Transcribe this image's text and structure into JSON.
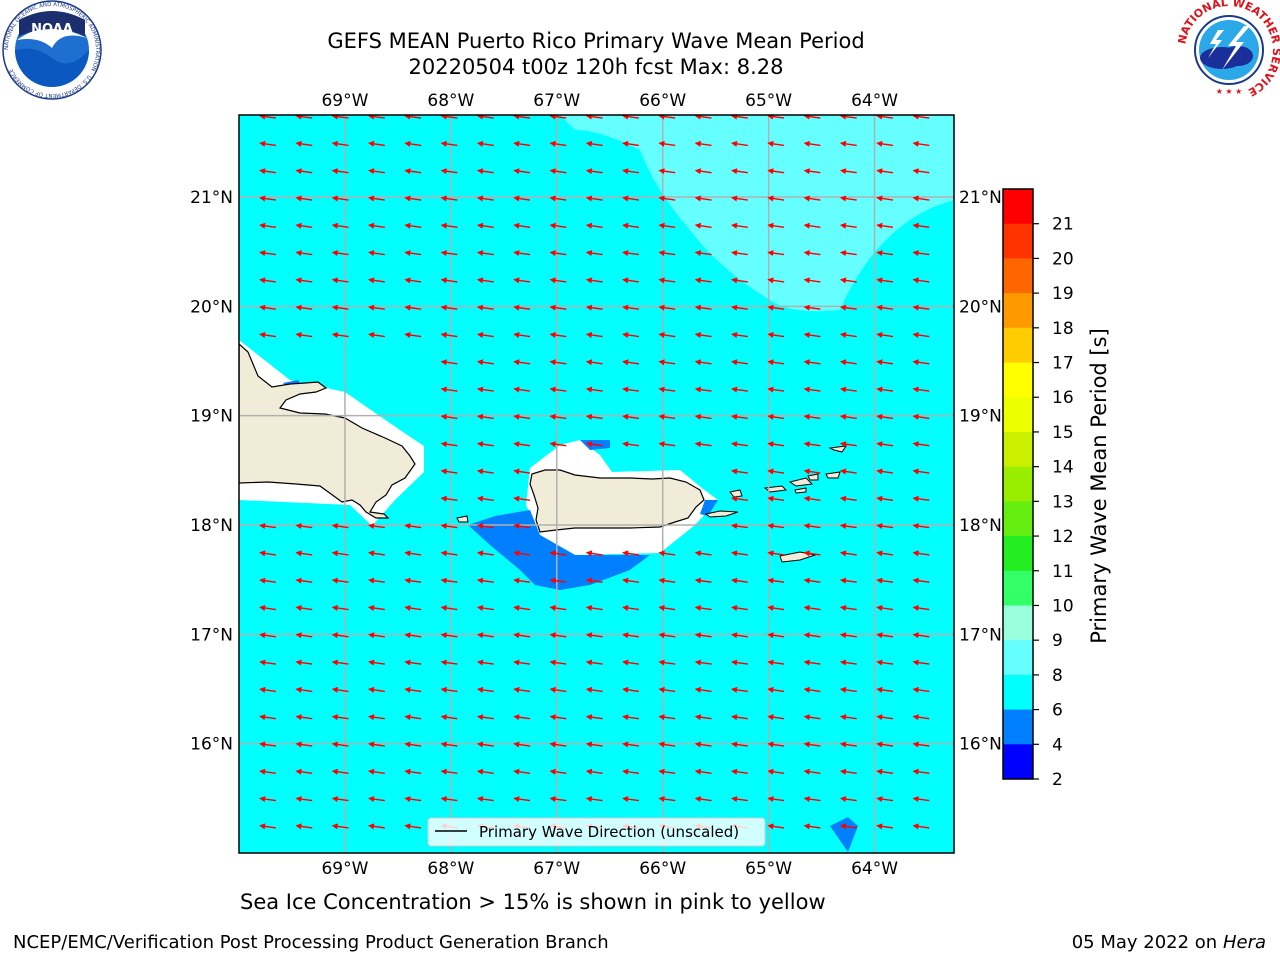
{
  "title_line1": "GEFS MEAN Puerto Rico Primary Wave Mean Period",
  "title_line2": "20220504 t00z 120h fcst   Max: 8.28",
  "logos": {
    "left": "noaa-logo",
    "right": "nws-logo",
    "left_text": "NOAA",
    "left_ring_text": "NATIONAL OCEANIC AND ATMOSPHERIC ADMINISTRATION · U.S. DEPARTMENT OF COMMERCE",
    "right_ring_text": "NATIONAL WEATHER SERVICE"
  },
  "map": {
    "lon_ticks": [
      "69°W",
      "68°W",
      "67°W",
      "66°W",
      "65°W",
      "64°W"
    ],
    "lat_ticks": [
      "21°N",
      "20°N",
      "19°N",
      "18°N",
      "17°N",
      "16°N"
    ],
    "lon_values": [
      -69,
      -68,
      -67,
      -66,
      -65,
      -64
    ],
    "lat_values": [
      21,
      20,
      19,
      18,
      17,
      16
    ],
    "lon_range": [
      -70,
      -63.25
    ],
    "lat_range": [
      15.0,
      21.75
    ],
    "ocean_color": "#00ffff",
    "land_color": "#f0ecd8",
    "arrow_color": "#ff0000",
    "wave_direction": "westward",
    "legend_label": "Primary Wave Direction (unscaled)"
  },
  "colorbar": {
    "label": "Primary Wave Mean Period [s]",
    "tick_labels": [
      "2",
      "4",
      "6",
      "8",
      "9",
      "10",
      "11",
      "12",
      "13",
      "14",
      "15",
      "16",
      "17",
      "18",
      "19",
      "20",
      "21"
    ],
    "bins": [
      {
        "from": 2,
        "to": 4,
        "color": "#0000ff"
      },
      {
        "from": 4,
        "to": 6,
        "color": "#0080ff"
      },
      {
        "from": 6,
        "to": 8,
        "color": "#00ffff"
      },
      {
        "from": 8,
        "to": 9,
        "color": "#66ffff"
      },
      {
        "from": 9,
        "to": 10,
        "color": "#99ffdd"
      },
      {
        "from": 10,
        "to": 11,
        "color": "#33ff66"
      },
      {
        "from": 11,
        "to": 12,
        "color": "#22ee22"
      },
      {
        "from": 12,
        "to": 13,
        "color": "#66ee11"
      },
      {
        "from": 13,
        "to": 14,
        "color": "#99ee00"
      },
      {
        "from": 14,
        "to": 15,
        "color": "#ccee00"
      },
      {
        "from": 15,
        "to": 16,
        "color": "#eeff00"
      },
      {
        "from": 16,
        "to": 17,
        "color": "#ffff00"
      },
      {
        "from": 17,
        "to": 18,
        "color": "#ffcc00"
      },
      {
        "from": 18,
        "to": 19,
        "color": "#ff9900"
      },
      {
        "from": 19,
        "to": 20,
        "color": "#ff6600"
      },
      {
        "from": 20,
        "to": 21,
        "color": "#ff3300"
      },
      {
        "from": 21,
        "to": 22,
        "color": "#ff0000"
      }
    ]
  },
  "subnote": "Sea Ice Concentration > 15% is shown in pink to yellow",
  "footer_left": "NCEP/EMC/Verification Post Processing Product Generation Branch",
  "footer_date": "05 May 2022 on",
  "footer_host": "Hera"
}
